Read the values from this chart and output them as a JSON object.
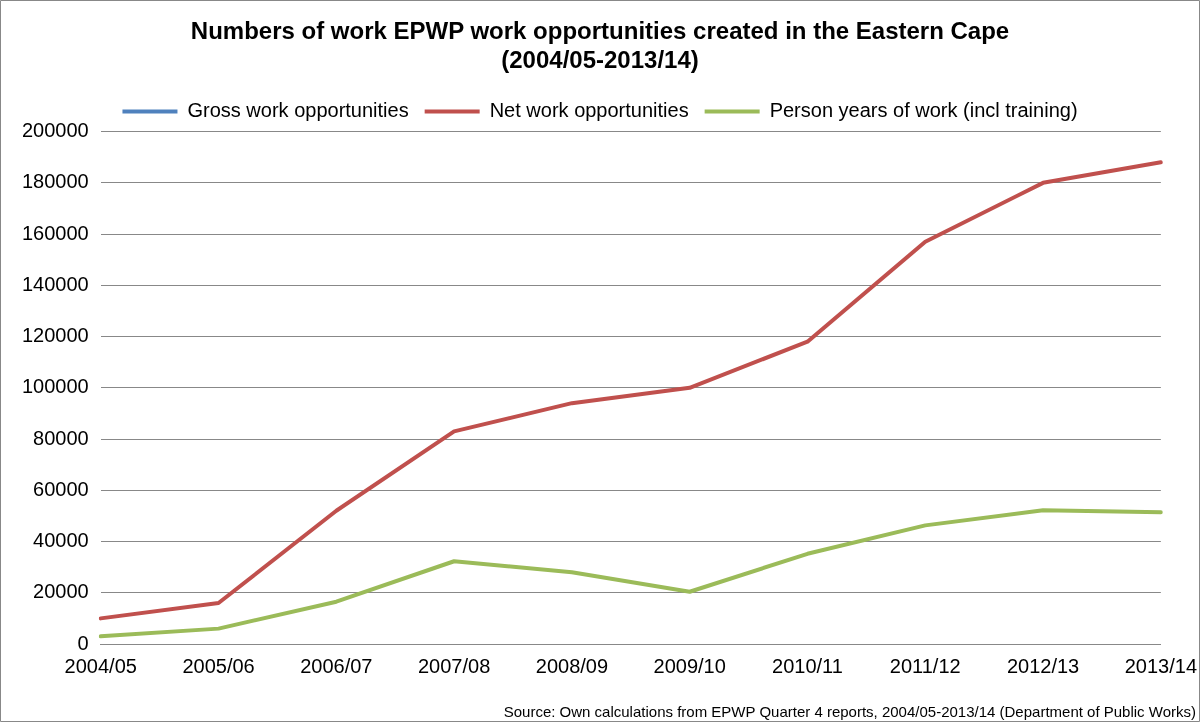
{
  "chart_data": {
    "type": "line",
    "title": "Numbers of work EPWP work opportunities created in the Eastern Cape (2004/05-2013/14)",
    "categories": [
      "2004/05",
      "2005/06",
      "2006/07",
      "2007/08",
      "2008/09",
      "2009/10",
      "2010/11",
      "2011/12",
      "2012/13",
      "2013/14"
    ],
    "series": [
      {
        "name": "Gross work opportunities",
        "color": "#4f81bd",
        "values": [
          null,
          null,
          null,
          null,
          null,
          null,
          null,
          null,
          null,
          null
        ]
      },
      {
        "name": "Net work opportunities",
        "color": "#c0504d",
        "values": [
          10000,
          16000,
          52000,
          83000,
          94000,
          100000,
          118000,
          157000,
          180000,
          188000
        ]
      },
      {
        "name": "Person years of work (incl training)",
        "color": "#9bbb59",
        "values": [
          3000,
          6000,
          16500,
          32300,
          28000,
          20400,
          35200,
          46300,
          52200,
          51400
        ]
      }
    ],
    "ylim": [
      0,
      200000
    ],
    "yticks": [
      0,
      20000,
      40000,
      60000,
      80000,
      100000,
      120000,
      140000,
      160000,
      180000,
      200000
    ],
    "grid": "y",
    "legend": "top",
    "marker": "none",
    "line_style": "solid",
    "annotations": [
      "Source: Own calculations from EPWP Quarter 4 reports, 2004/05-2013/14 (Department of Public Works)"
    ]
  }
}
